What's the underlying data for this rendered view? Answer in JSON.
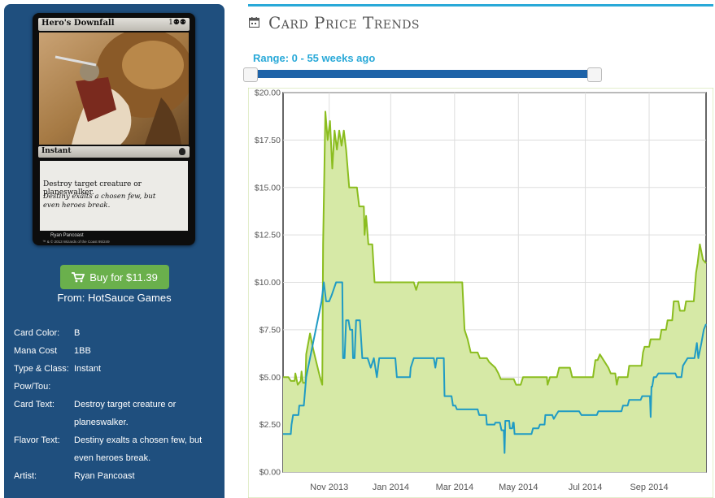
{
  "card": {
    "name": "Hero's Downfall",
    "mana_symbols": "1⚉⚉",
    "type_line": "Instant",
    "rules_text": "Destroy target creature or planeswalker.",
    "flavor_text": "Destiny exalts a chosen few, but even heroes break.",
    "artist_credit": "Ryan Pancoast",
    "copyright": "™ & © 2013 Wizards of the Coast  95/249"
  },
  "buy": {
    "label": "Buy for $11.39",
    "from": "From: HotSauce Games",
    "icon": "shopping-cart-icon"
  },
  "attributes": [
    {
      "label": "Card Color:",
      "value": "B"
    },
    {
      "label": "Mana Cost",
      "value": "1BB"
    },
    {
      "label": "Type & Class:",
      "value": "Instant"
    },
    {
      "label": "Pow/Tou:",
      "value": ""
    },
    {
      "label": "Card Text:",
      "value": "Destroy target creature or planeswalker."
    },
    {
      "label": "Flavor Text:",
      "value": "Destiny exalts a chosen few, but even heroes break."
    },
    {
      "label": "Artist:",
      "value": "Ryan Pancoast"
    }
  ],
  "section": {
    "title": "Card Price Trends",
    "icon": "calendar-icon"
  },
  "range": {
    "label": "Range: 0 - 55 weeks ago",
    "min_weeks": 0,
    "max_weeks": 55
  },
  "colors": {
    "panel": "#1f4f7e",
    "accent": "#29a9d8",
    "buy": "#6ab04c",
    "green_series": "#8bbd1f",
    "blue_series": "#1f9bc4",
    "fill": "#d6e9a6"
  },
  "chart_data": {
    "type": "area",
    "title": "",
    "xlabel": "",
    "ylabel": "",
    "x_ticks": [
      "Nov 2013",
      "Jan 2014",
      "Mar 2014",
      "May 2014",
      "Jul 2014",
      "Sep 2014"
    ],
    "x_tick_weeks": [
      6.0,
      14.0,
      22.3,
      30.6,
      39.3,
      47.6
    ],
    "y_ticks": [
      "$0.00",
      "$2.50",
      "$5.00",
      "$7.50",
      "$10.00",
      "$12.50",
      "$15.00",
      "$17.50",
      "$20.00"
    ],
    "ylim": [
      0,
      20
    ],
    "xlim": [
      0,
      55
    ],
    "grid": true,
    "series": [
      {
        "color": "#8bbd1f",
        "filled": true,
        "points": [
          [
            0,
            5.0
          ],
          [
            0.7,
            5.0
          ],
          [
            1.0,
            4.8
          ],
          [
            1.5,
            4.8
          ],
          [
            1.6,
            5.2
          ],
          [
            1.9,
            4.6
          ],
          [
            2.3,
            4.8
          ],
          [
            2.4,
            5.3
          ],
          [
            2.6,
            4.7
          ],
          [
            2.9,
            4.7
          ],
          [
            3.0,
            6.2
          ],
          [
            3.5,
            7.3
          ],
          [
            3.9,
            6.5
          ],
          [
            4.2,
            6.0
          ],
          [
            4.8,
            5.0
          ],
          [
            5.1,
            4.6
          ],
          [
            5.2,
            12.0
          ],
          [
            5.5,
            19.0
          ],
          [
            5.8,
            17.5
          ],
          [
            6.1,
            18.5
          ],
          [
            6.4,
            16.0
          ],
          [
            6.7,
            18.0
          ],
          [
            7.0,
            17.0
          ],
          [
            7.3,
            18.0
          ],
          [
            7.6,
            17.2
          ],
          [
            7.9,
            18.0
          ],
          [
            8.2,
            17.0
          ],
          [
            8.6,
            15.0
          ],
          [
            9.6,
            15.0
          ],
          [
            9.9,
            14.0
          ],
          [
            10.5,
            14.0
          ],
          [
            10.6,
            12.5
          ],
          [
            10.8,
            13.5
          ],
          [
            11.1,
            12.0
          ],
          [
            11.6,
            12.0
          ],
          [
            11.9,
            10.0
          ],
          [
            17.0,
            10.0
          ],
          [
            17.3,
            9.6
          ],
          [
            17.6,
            10.0
          ],
          [
            23.3,
            10.0
          ],
          [
            23.6,
            7.5
          ],
          [
            24.0,
            7.0
          ],
          [
            24.4,
            6.3
          ],
          [
            25.3,
            6.3
          ],
          [
            25.6,
            6.0
          ],
          [
            26.5,
            6.0
          ],
          [
            26.8,
            5.8
          ],
          [
            27.6,
            5.5
          ],
          [
            28.0,
            5.2
          ],
          [
            28.3,
            4.9
          ],
          [
            30.0,
            4.9
          ],
          [
            30.3,
            4.6
          ],
          [
            30.9,
            4.6
          ],
          [
            31.2,
            5.0
          ],
          [
            34.3,
            5.0
          ],
          [
            34.4,
            4.6
          ],
          [
            34.7,
            5.0
          ],
          [
            35.6,
            5.0
          ],
          [
            35.9,
            5.5
          ],
          [
            37.3,
            5.5
          ],
          [
            37.6,
            5.0
          ],
          [
            40.3,
            5.0
          ],
          [
            40.6,
            5.9
          ],
          [
            40.9,
            5.9
          ],
          [
            41.2,
            6.2
          ],
          [
            42.3,
            5.5
          ],
          [
            42.6,
            5.2
          ],
          [
            43.2,
            5.2
          ],
          [
            43.4,
            4.6
          ],
          [
            43.6,
            5.0
          ],
          [
            44.8,
            5.0
          ],
          [
            45.0,
            5.6
          ],
          [
            46.6,
            5.6
          ],
          [
            46.8,
            6.3
          ],
          [
            47.0,
            6.6
          ],
          [
            47.6,
            6.6
          ],
          [
            47.8,
            7.0
          ],
          [
            49.0,
            7.0
          ],
          [
            49.2,
            7.5
          ],
          [
            49.8,
            7.5
          ],
          [
            50.0,
            8.0
          ],
          [
            50.6,
            8.0
          ],
          [
            50.8,
            9.0
          ],
          [
            51.4,
            9.0
          ],
          [
            51.6,
            8.5
          ],
          [
            52.2,
            8.5
          ],
          [
            52.4,
            9.0
          ],
          [
            53.4,
            9.0
          ],
          [
            53.7,
            10.5
          ],
          [
            53.9,
            11.0
          ],
          [
            54.2,
            12.0
          ],
          [
            54.6,
            11.2
          ],
          [
            55.0,
            11.0
          ]
        ]
      },
      {
        "color": "#1f9bc4",
        "filled": false,
        "points": [
          [
            0,
            2.0
          ],
          [
            0.7,
            2.0
          ],
          [
            1.0,
            2.0
          ],
          [
            1.1,
            2.5
          ],
          [
            1.3,
            3.0
          ],
          [
            2.0,
            3.0
          ],
          [
            2.1,
            3.5
          ],
          [
            2.7,
            3.5
          ],
          [
            3.0,
            5.0
          ],
          [
            4.0,
            7.0
          ],
          [
            5.0,
            9.0
          ],
          [
            5.3,
            10.0
          ],
          [
            5.6,
            9.0
          ],
          [
            6.0,
            9.0
          ],
          [
            6.3,
            9.3
          ],
          [
            6.9,
            10.0
          ],
          [
            7.7,
            10.0
          ],
          [
            7.8,
            6.0
          ],
          [
            8.0,
            6.0
          ],
          [
            8.2,
            8.0
          ],
          [
            8.5,
            8.0
          ],
          [
            8.7,
            7.5
          ],
          [
            9.0,
            7.5
          ],
          [
            9.1,
            6.0
          ],
          [
            9.3,
            6.0
          ],
          [
            9.5,
            8.0
          ],
          [
            10.0,
            8.0
          ],
          [
            10.3,
            6.0
          ],
          [
            11.0,
            6.0
          ],
          [
            11.4,
            5.5
          ],
          [
            11.8,
            6.0
          ],
          [
            12.2,
            5.0
          ],
          [
            12.5,
            6.0
          ],
          [
            14.6,
            6.0
          ],
          [
            14.8,
            5.0
          ],
          [
            16.5,
            5.0
          ],
          [
            16.6,
            5.5
          ],
          [
            17.0,
            6.0
          ],
          [
            19.6,
            6.0
          ],
          [
            19.8,
            5.5
          ],
          [
            20.0,
            6.0
          ],
          [
            20.9,
            6.0
          ],
          [
            21.0,
            4.0
          ],
          [
            21.9,
            4.0
          ],
          [
            22.1,
            3.5
          ],
          [
            22.4,
            3.5
          ],
          [
            22.6,
            3.3
          ],
          [
            25.3,
            3.3
          ],
          [
            25.5,
            3.0
          ],
          [
            26.4,
            3.0
          ],
          [
            26.5,
            2.5
          ],
          [
            27.5,
            2.5
          ],
          [
            27.6,
            2.6
          ],
          [
            28.2,
            2.6
          ],
          [
            28.4,
            2.2
          ],
          [
            28.7,
            2.2
          ],
          [
            28.8,
            1.0
          ],
          [
            28.9,
            2.7
          ],
          [
            29.4,
            2.7
          ],
          [
            29.5,
            2.3
          ],
          [
            29.8,
            2.3
          ],
          [
            29.9,
            2.6
          ],
          [
            30.0,
            2.6
          ],
          [
            30.1,
            2.0
          ],
          [
            32.3,
            2.0
          ],
          [
            32.5,
            2.3
          ],
          [
            33.2,
            2.3
          ],
          [
            33.4,
            2.5
          ],
          [
            34.0,
            2.5
          ],
          [
            34.1,
            3.0
          ],
          [
            35.0,
            3.0
          ],
          [
            35.2,
            2.8
          ],
          [
            35.5,
            3.0
          ],
          [
            35.8,
            3.2
          ],
          [
            38.5,
            3.2
          ],
          [
            38.8,
            3.0
          ],
          [
            40.8,
            3.0
          ],
          [
            41.0,
            3.2
          ],
          [
            44.0,
            3.2
          ],
          [
            44.2,
            3.5
          ],
          [
            44.8,
            3.5
          ],
          [
            45.0,
            3.8
          ],
          [
            46.5,
            3.8
          ],
          [
            46.7,
            4.0
          ],
          [
            47.7,
            4.0
          ],
          [
            47.8,
            2.9
          ],
          [
            47.9,
            4.5
          ],
          [
            48.0,
            4.5
          ],
          [
            48.2,
            5.0
          ],
          [
            48.5,
            5.0
          ],
          [
            48.8,
            5.2
          ],
          [
            51.0,
            5.2
          ],
          [
            51.2,
            5.0
          ],
          [
            51.8,
            5.0
          ],
          [
            52.0,
            5.6
          ],
          [
            52.6,
            6.0
          ],
          [
            53.0,
            6.0
          ],
          [
            53.5,
            6.0
          ],
          [
            53.8,
            6.8
          ],
          [
            54.0,
            6.0
          ],
          [
            54.4,
            6.8
          ],
          [
            54.7,
            7.5
          ],
          [
            55.0,
            7.8
          ]
        ]
      }
    ]
  }
}
